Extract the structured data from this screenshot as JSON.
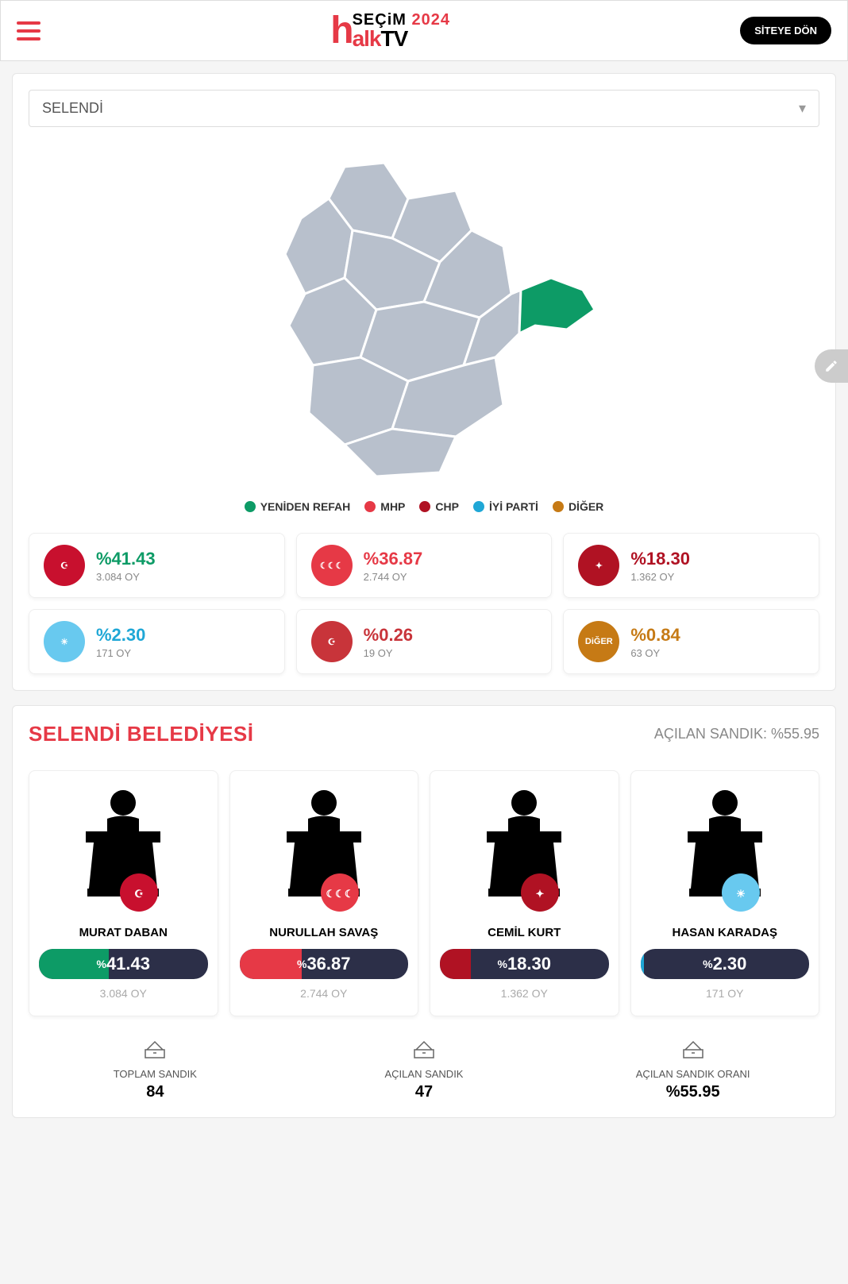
{
  "header": {
    "secim_label": "SEÇiM",
    "year": "2024",
    "alk": "alk",
    "tv": "TV",
    "back_button": "SİTEYE DÖN"
  },
  "district_selector": {
    "value": "SELENDİ"
  },
  "map": {
    "region_colors": {
      "default": "#b8c0cc",
      "highlight": "#0d9b66"
    }
  },
  "legend": [
    {
      "label": "YENİDEN REFAH",
      "color": "#0d9b66"
    },
    {
      "label": "MHP",
      "color": "#e63946"
    },
    {
      "label": "CHP",
      "color": "#b01223"
    },
    {
      "label": "İYİ PARTİ",
      "color": "#1fa7d6"
    },
    {
      "label": "DİĞER",
      "color": "#c67a15"
    }
  ],
  "parties": [
    {
      "name": "yeniden-refah",
      "logo_bg": "#c8102e",
      "logo_text": "☪",
      "pct": "%41.43",
      "pct_color": "#0d9b66",
      "votes": "3.084 OY"
    },
    {
      "name": "mhp",
      "logo_bg": "#e63946",
      "logo_text": "☾☾☾",
      "pct": "%36.87",
      "pct_color": "#e63946",
      "votes": "2.744 OY"
    },
    {
      "name": "chp",
      "logo_bg": "#b01223",
      "logo_text": "✦",
      "pct": "%18.30",
      "pct_color": "#b01223",
      "votes": "1.362 OY"
    },
    {
      "name": "iyi-parti",
      "logo_bg": "#68c9ef",
      "logo_text": "☀",
      "pct": "%2.30",
      "pct_color": "#1fa7d6",
      "votes": "171 OY"
    },
    {
      "name": "saadet",
      "logo_bg": "#c8343a",
      "logo_text": "☪",
      "pct": "%0.26",
      "pct_color": "#c8343a",
      "votes": "19 OY"
    },
    {
      "name": "diger",
      "logo_bg": "#c67a15",
      "logo_text": "DiĞER",
      "pct": "%0.84",
      "pct_color": "#c67a15",
      "votes": "63 OY"
    }
  ],
  "municipality": {
    "title": "SELENDİ BELEDİYESİ",
    "opened_label": "AÇILAN SANDIK: %55.95"
  },
  "candidates": [
    {
      "name": "MURAT DABAN",
      "party_logo_bg": "#c8102e",
      "party_logo_text": "☪",
      "pct": "41.43",
      "fill_color": "#0d9b66",
      "fill_pct": 41.43,
      "votes": "3.084 OY"
    },
    {
      "name": "NURULLAH SAVAŞ",
      "party_logo_bg": "#e63946",
      "party_logo_text": "☾☾☾",
      "pct": "36.87",
      "fill_color": "#e63946",
      "fill_pct": 36.87,
      "votes": "2.744 OY"
    },
    {
      "name": "CEMİL KURT",
      "party_logo_bg": "#b01223",
      "party_logo_text": "✦",
      "pct": "18.30",
      "fill_color": "#b01223",
      "fill_pct": 18.3,
      "votes": "1.362 OY"
    },
    {
      "name": "HASAN KARADAŞ",
      "party_logo_bg": "#68c9ef",
      "party_logo_text": "☀",
      "pct": "2.30",
      "fill_color": "#1fa7d6",
      "fill_pct": 2.3,
      "votes": "171 OY"
    }
  ],
  "stats": [
    {
      "label": "TOPLAM SANDIK",
      "value": "84"
    },
    {
      "label": "AÇILAN SANDIK",
      "value": "47"
    },
    {
      "label": "AÇILAN SANDIK ORANI",
      "value": "%55.95"
    }
  ]
}
